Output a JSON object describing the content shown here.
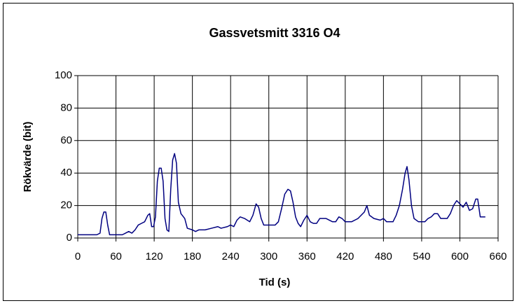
{
  "chart_data": {
    "type": "line",
    "title": "Gassvetsmitt 3316 O4",
    "x_label": "Tid (s)",
    "y_label": "Rökvärde (bit)",
    "x": [
      0,
      30,
      35,
      38,
      41,
      44,
      47,
      50,
      55,
      70,
      75,
      80,
      85,
      90,
      95,
      100,
      105,
      110,
      113,
      116,
      119,
      122,
      125,
      128,
      131,
      134,
      137,
      140,
      143,
      146,
      149,
      152,
      155,
      158,
      162,
      168,
      172,
      180,
      185,
      190,
      200,
      210,
      220,
      225,
      235,
      240,
      245,
      250,
      255,
      262,
      270,
      275,
      280,
      284,
      288,
      292,
      300,
      310,
      315,
      320,
      325,
      330,
      334,
      338,
      342,
      346,
      350,
      355,
      360,
      365,
      370,
      375,
      380,
      390,
      400,
      405,
      410,
      415,
      420,
      430,
      440,
      450,
      454,
      458,
      465,
      475,
      480,
      485,
      495,
      500,
      505,
      510,
      514,
      517,
      520,
      524,
      528,
      535,
      545,
      550,
      555,
      560,
      565,
      570,
      580,
      585,
      590,
      595,
      600,
      605,
      610,
      615,
      620,
      625,
      628,
      632,
      640
    ],
    "values": [
      2,
      2,
      3,
      12,
      16,
      16,
      8,
      2,
      2,
      2,
      3,
      4,
      3,
      5,
      8,
      9,
      10,
      14,
      15,
      7,
      7,
      13,
      35,
      43,
      43,
      35,
      12,
      5,
      4,
      30,
      48,
      52,
      46,
      22,
      15,
      12,
      6,
      5,
      4,
      5,
      5,
      6,
      7,
      6,
      7,
      8,
      7,
      11,
      13,
      12,
      10,
      14,
      21,
      19,
      12,
      8,
      8,
      8,
      10,
      18,
      27,
      30,
      29,
      22,
      13,
      9,
      7,
      11,
      14,
      10,
      9,
      9,
      12,
      12,
      10,
      10,
      13,
      12,
      10,
      10,
      12,
      16,
      20,
      14,
      12,
      11,
      12,
      10,
      10,
      14,
      20,
      30,
      40,
      44,
      36,
      20,
      12,
      10,
      10,
      12,
      13,
      15,
      15,
      12,
      12,
      15,
      20,
      23,
      21,
      19,
      22,
      17,
      18,
      24,
      24,
      13,
      13
    ],
    "color": "#000080",
    "xlim": [
      0,
      660
    ],
    "xticks": [
      0,
      60,
      120,
      180,
      240,
      300,
      360,
      420,
      480,
      540,
      600,
      660
    ],
    "ylim": [
      0,
      100
    ],
    "yticks": [
      0,
      20,
      40,
      60,
      80,
      100
    ],
    "grid": true
  }
}
